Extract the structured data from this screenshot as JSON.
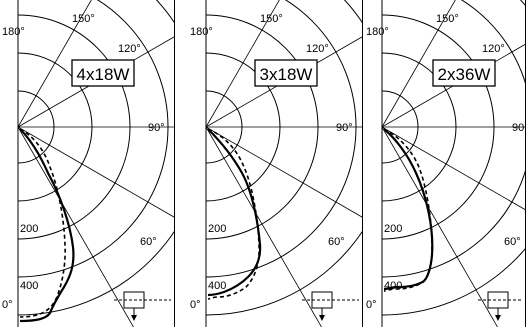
{
  "panels": [
    {
      "lamp_label": "4x18W",
      "angle_labels": [
        "180°",
        "150°",
        "120°",
        "90°",
        "60°",
        "0°"
      ],
      "radial_labels": [
        "200",
        "400"
      ]
    },
    {
      "lamp_label": "3x18W",
      "angle_labels": [
        "180°",
        "150°",
        "120°",
        "90°",
        "60°",
        "0°"
      ],
      "radial_labels": [
        "200",
        "400"
      ]
    },
    {
      "lamp_label": "2x36W",
      "angle_labels": [
        "180°",
        "150°",
        "120°",
        "90°",
        "60°",
        "0°"
      ],
      "radial_labels": [
        "200",
        "400"
      ]
    }
  ]
}
